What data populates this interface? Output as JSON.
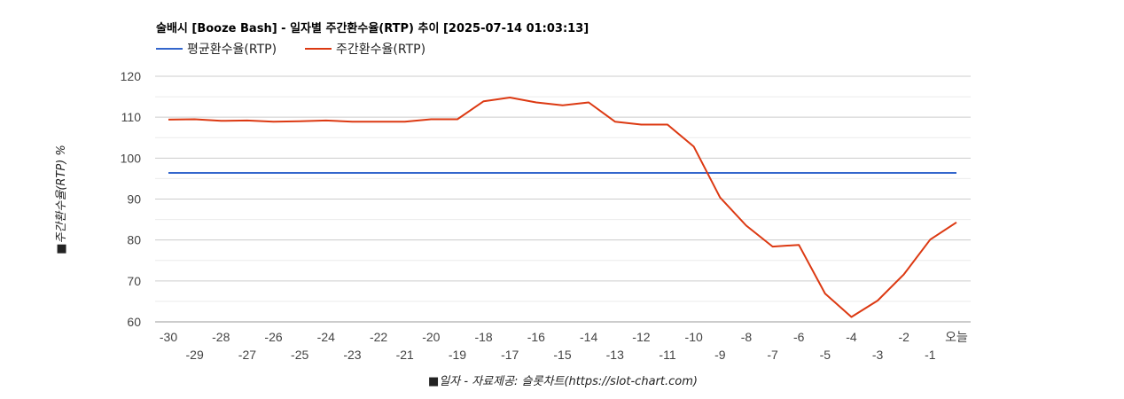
{
  "chart_data": {
    "type": "line",
    "title": "술배시 [Booze Bash] - 일자별 주간환수율(RTP) 추이 [2025-07-14 01:03:13]",
    "xlabel": "■일자 - 자료제공: 슬롯차트(https://slot-chart.com)",
    "ylabel": "■주간환수율(RTP) %",
    "ylim": [
      60,
      120
    ],
    "yticks": [
      60,
      70,
      80,
      90,
      100,
      110,
      120
    ],
    "grid": true,
    "legend_position": "top-left",
    "categories": [
      "-30",
      "-29",
      "-28",
      "-27",
      "-26",
      "-25",
      "-24",
      "-23",
      "-22",
      "-21",
      "-20",
      "-19",
      "-18",
      "-17",
      "-16",
      "-15",
      "-14",
      "-13",
      "-12",
      "-11",
      "-10",
      "-9",
      "-8",
      "-7",
      "-6",
      "-5",
      "-4",
      "-3",
      "-2",
      "-1",
      "오늘"
    ],
    "series": [
      {
        "name": "평균환수율(RTP)",
        "color": "#3366cc",
        "values": [
          96.4,
          96.4,
          96.4,
          96.4,
          96.4,
          96.4,
          96.4,
          96.4,
          96.4,
          96.4,
          96.4,
          96.4,
          96.4,
          96.4,
          96.4,
          96.4,
          96.4,
          96.4,
          96.4,
          96.4,
          96.4,
          96.4,
          96.4,
          96.4,
          96.4,
          96.4,
          96.4,
          96.4,
          96.4,
          96.4,
          96.4
        ]
      },
      {
        "name": "주간환수율(RTP)",
        "color": "#dc3912",
        "values": [
          109.4,
          109.5,
          109.1,
          109.2,
          108.9,
          109.0,
          109.2,
          108.9,
          108.9,
          108.9,
          109.5,
          109.5,
          113.9,
          114.8,
          113.6,
          112.9,
          113.6,
          108.9,
          108.2,
          108.2,
          102.8,
          90.4,
          83.5,
          78.4,
          78.8,
          66.9,
          61.2,
          65.2,
          71.6,
          80.1,
          84.3
        ]
      }
    ]
  }
}
